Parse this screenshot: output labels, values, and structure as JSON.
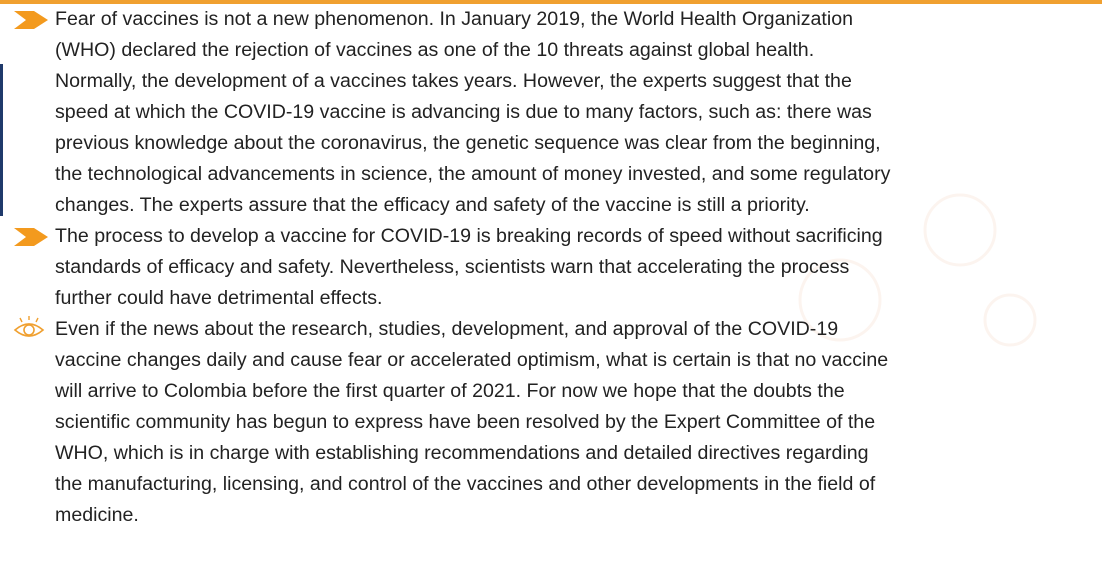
{
  "paragraphs": [
    {
      "icon": "arrow",
      "lines": [
        "Fear of vaccines is not a new phenomenon. In January 2019, the World Health Organization",
        "(WHO) declared the rejection of vaccines as one of the 10 threats against global health.",
        "Normally, the development of a vaccines takes years. However, the experts suggest that the",
        "speed at which the COVID-19 vaccine is advancing is due to many factors, such as: there was",
        "previous knowledge about the coronavirus, the genetic sequence was clear from the beginning,",
        "the technological advancements in science, the amount of money invested, and some regulatory",
        "changes. The experts assure that the efficacy and safety of the vaccine is still a priority."
      ]
    },
    {
      "icon": "arrow",
      "lines": [
        "The process to develop a vaccine for COVID-19 is breaking records of speed without sacrificing",
        "standards of efficacy and safety. Nevertheless, scientists warn that accelerating the process",
        "further could have detrimental effects."
      ]
    },
    {
      "icon": "eye",
      "lines": [
        "Even if the news about the research, studies, development, and approval of the COVID-19",
        "vaccine changes daily and cause fear or accelerated optimism, what is certain is that no vaccine",
        "will arrive to Colombia before the first quarter of 2021. For now we hope that the doubts the",
        "scientific community has begun to express have been resolved by the Expert Committee of the",
        "WHO, which is in charge with establishing recommendations and detailed directives regarding",
        "the manufacturing, licensing, and control of the vaccines and other developments in the field of",
        "medicine."
      ]
    }
  ]
}
